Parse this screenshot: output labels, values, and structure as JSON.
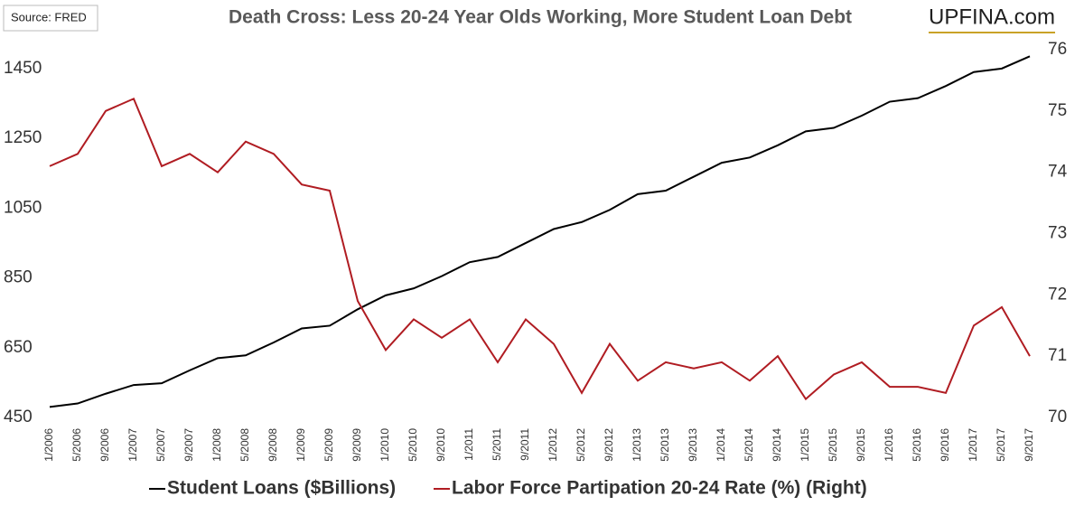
{
  "source": "Source: FRED",
  "brand": "UPFINA.com",
  "chart_data": {
    "type": "line",
    "title": "Death Cross: Less 20-24 Year Olds Working, More Student Loan Debt",
    "categories": [
      "1/2006",
      "5/2006",
      "9/2006",
      "1/2007",
      "5/2007",
      "9/2007",
      "1/2008",
      "5/2008",
      "9/2008",
      "1/2009",
      "5/2009",
      "9/2009",
      "1/2010",
      "5/2010",
      "9/2010",
      "1/2011",
      "5/2011",
      "9/2011",
      "1/2012",
      "5/2012",
      "9/2012",
      "1/2013",
      "5/2013",
      "9/2013",
      "1/2014",
      "5/2014",
      "9/2014",
      "1/2015",
      "5/2015",
      "9/2015",
      "1/2016",
      "5/2016",
      "9/2016",
      "1/2017",
      "5/2017",
      "9/2017"
    ],
    "series": [
      {
        "name": "Student Loans ($Billions)",
        "color": "#000000",
        "values": [
          480,
          490,
          518,
          543,
          548,
          585,
          620,
          628,
          665,
          705,
          713,
          760,
          800,
          820,
          855,
          895,
          910,
          950,
          990,
          1010,
          1045,
          1090,
          1100,
          1140,
          1180,
          1195,
          1230,
          1270,
          1280,
          1315,
          1355,
          1365,
          1400,
          1440,
          1450,
          1485
        ]
      },
      {
        "name": "Labor Force Partipation 20-24 Rate (%) (Right)",
        "color": "#b01c22",
        "axis": "y2",
        "values": [
          74.1,
          74.3,
          75.0,
          75.2,
          74.1,
          74.3,
          74.0,
          74.5,
          74.3,
          73.8,
          73.7,
          71.9,
          71.1,
          71.6,
          71.3,
          71.6,
          70.9,
          71.6,
          71.2,
          70.4,
          71.2,
          70.6,
          70.9,
          70.8,
          70.9,
          70.6,
          71.0,
          70.3,
          70.7,
          70.9,
          70.5,
          70.5,
          70.4,
          71.5,
          71.8,
          71.0
        ]
      }
    ],
    "ylim": [
      450,
      1504
    ],
    "yticks": [
      450,
      650,
      850,
      1050,
      1250,
      1450
    ],
    "y2lim": [
      70,
      76
    ],
    "y2ticks": [
      70,
      71,
      72,
      73,
      74,
      75,
      76
    ],
    "grid": false
  }
}
